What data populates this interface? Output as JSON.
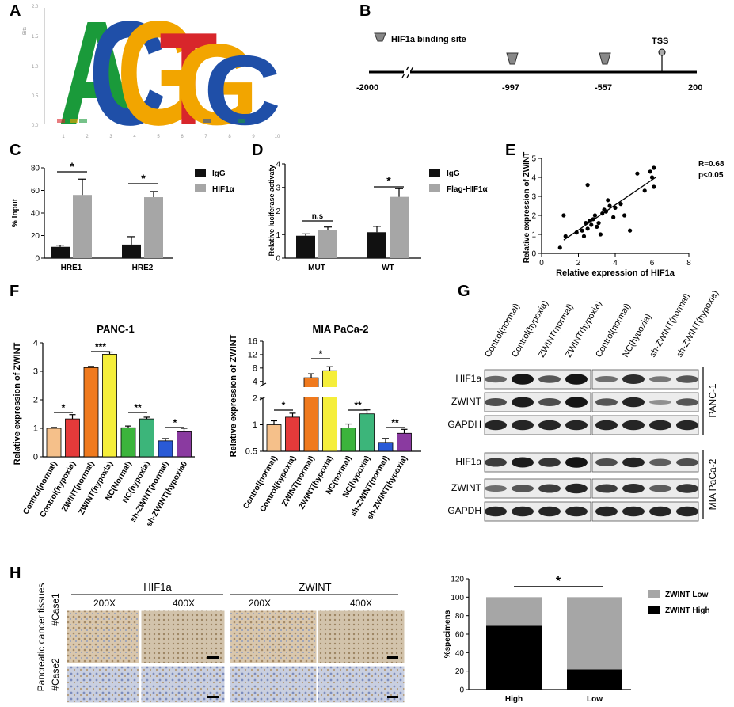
{
  "panels": {
    "a": "A",
    "b": "B",
    "c": "C",
    "d": "D",
    "e": "E",
    "f": "F",
    "g": "G",
    "h": "H"
  },
  "motif": {
    "letters": [
      "A",
      "C",
      "G",
      "T",
      "G",
      "C"
    ],
    "letter_colors": {
      "A": "#1a9a3a",
      "C": "#1f4fa8",
      "G": "#f2a500",
      "T": "#d8262b"
    },
    "y_axis_label": "Bits",
    "y_ticks": [
      "2.0",
      "1.5",
      "1.0",
      "0.5",
      "0.0"
    ],
    "x_ticks": [
      "1",
      "2",
      "3",
      "4",
      "5",
      "6",
      "7",
      "8",
      "9",
      "10"
    ]
  },
  "promoter": {
    "legend": "HIF1a binding site",
    "tss": "TSS",
    "positions": [
      "-2000",
      "-997",
      "-557",
      "200"
    ]
  },
  "chart_data": [
    {
      "id": "C",
      "type": "bar",
      "categories": [
        "HRE1",
        "HRE2"
      ],
      "series": [
        {
          "name": "IgG",
          "values": [
            10,
            12
          ],
          "errors": [
            1.5,
            7
          ]
        },
        {
          "name": "HIF1α",
          "values": [
            56,
            54
          ],
          "errors": [
            14,
            5
          ]
        }
      ],
      "ylabel": "% Input",
      "ylim": [
        0,
        80
      ],
      "yticks": [
        "0",
        "20",
        "40",
        "60",
        "80"
      ],
      "significance": [
        "*",
        "*"
      ]
    },
    {
      "id": "D",
      "type": "bar",
      "categories": [
        "MUT",
        "WT"
      ],
      "series": [
        {
          "name": "IgG",
          "values": [
            0.95,
            1.1
          ],
          "errors": [
            0.08,
            0.25
          ]
        },
        {
          "name": "Flag-HIF1α",
          "values": [
            1.2,
            2.6
          ],
          "errors": [
            0.12,
            0.35
          ]
        }
      ],
      "ylabel": "Relative luciferase activaty",
      "ylim": [
        0,
        4
      ],
      "yticks": [
        "0",
        "1",
        "2",
        "3",
        "4"
      ],
      "significance": [
        "n.s",
        "*"
      ]
    },
    {
      "id": "E",
      "type": "scatter",
      "xlabel": "Relative expression of HIF1a",
      "ylabel": "Relative expression of ZWINT",
      "xlim": [
        0,
        8
      ],
      "ylim": [
        0,
        5
      ],
      "xticks": [
        "0",
        "2",
        "4",
        "6",
        "8"
      ],
      "yticks": [
        "0",
        "1",
        "2",
        "3",
        "4",
        "5"
      ],
      "annotation": [
        "R=0.68",
        "p<0.05"
      ],
      "x": [
        1.0,
        1.3,
        1.2,
        1.9,
        2.2,
        2.3,
        2.4,
        2.5,
        2.6,
        2.7,
        2.8,
        2.9,
        3.0,
        3.1,
        3.2,
        3.3,
        3.4,
        3.5,
        3.6,
        3.7,
        3.9,
        4.0,
        4.3,
        4.5,
        4.8,
        5.2,
        5.6,
        5.9,
        6.0,
        6.1,
        6.1,
        2.5
      ],
      "y": [
        0.3,
        0.9,
        2.0,
        1.1,
        1.2,
        0.9,
        1.6,
        1.3,
        1.7,
        1.5,
        1.8,
        2.0,
        1.4,
        1.6,
        1.0,
        2.1,
        2.3,
        2.2,
        2.8,
        2.5,
        1.9,
        2.4,
        2.6,
        2.0,
        1.2,
        4.2,
        3.3,
        4.3,
        4.0,
        3.5,
        4.5,
        3.6
      ],
      "fit": {
        "x": [
          1.2,
          6.2
        ],
        "y": [
          0.7,
          4.0
        ]
      }
    },
    {
      "id": "F1",
      "type": "bar",
      "title": "PANC-1",
      "ylabel": "Relative expression of ZWINT",
      "ylim": [
        0,
        4
      ],
      "yticks": [
        "0",
        "1",
        "2",
        "3",
        "4"
      ],
      "categories": [
        "Control(normal)",
        "Control(hypoxia)",
        "ZWINT(normal)",
        "ZWINT(hypoxia)",
        "NC(Normal)",
        "NC(hypoxia)",
        "sh-ZWINT(normal)",
        "sh-ZWINT(hypoxia0"
      ],
      "values": [
        1.0,
        1.33,
        3.13,
        3.6,
        1.02,
        1.33,
        0.56,
        0.88
      ],
      "errors": [
        0.03,
        0.15,
        0.04,
        0.08,
        0.06,
        0.06,
        0.08,
        0.12
      ],
      "colors": [
        "#f5c08a",
        "#e53a3a",
        "#f07a1e",
        "#f5ee3a",
        "#3cb43c",
        "#3cb57a",
        "#2a5ad6",
        "#8a3aa0"
      ],
      "significance": [
        "*",
        "***",
        "**",
        "*"
      ]
    },
    {
      "id": "F2",
      "type": "bar",
      "title": "MIA PaCa-2",
      "ylabel": "Relative expression of ZWINT",
      "yticks": [
        "16",
        "12",
        "8",
        "4",
        "2",
        "1",
        "0.5"
      ],
      "categories": [
        "Control(normal)",
        "Control(hypoxia)",
        "ZWINT(normal)",
        "ZWINT(hypoxia)",
        "NC(normal)",
        "NC(hypoxia)",
        "sh-ZWINT(normal)",
        "sh-ZWINT(hypoxia)"
      ],
      "values": [
        1.0,
        1.22,
        5.1,
        7.2,
        0.92,
        1.33,
        0.63,
        0.8
      ],
      "colors": [
        "#f5c08a",
        "#e53a3a",
        "#f07a1e",
        "#f5ee3a",
        "#3cb43c",
        "#3cb57a",
        "#2a5ad6",
        "#8a3aa0"
      ],
      "significance": [
        "*",
        "*",
        "**",
        "**"
      ]
    },
    {
      "id": "H",
      "type": "bar",
      "stacked": true,
      "categories": [
        "High",
        "Low"
      ],
      "series": [
        {
          "name": "ZWINT Low",
          "values": [
            31,
            78
          ]
        },
        {
          "name": "ZWINT High",
          "values": [
            69,
            22
          ]
        }
      ],
      "ylabel": "%specimens",
      "ylim": [
        0,
        120
      ],
      "yticks": [
        "0",
        "20",
        "40",
        "60",
        "80",
        "100",
        "120"
      ],
      "significance": [
        "*"
      ]
    }
  ],
  "western": {
    "lanes": [
      "Control(normal)",
      "Control(hypoxia)",
      "ZWINT(normal)",
      "ZWINT(hypoxia)",
      "Control(normal)",
      "NC(hypoxia)",
      "sh-ZWINT(normal)",
      "sh-ZWINT(hypoxia)"
    ],
    "rows": [
      "HIF1a",
      "ZWINT",
      "GAPDH",
      "HIF1a",
      "ZWINT",
      "GAPDH"
    ],
    "groups": [
      "PANC-1",
      "MIA PaCa-2"
    ]
  },
  "ihc": {
    "col_labels": [
      "HIF1a",
      "ZWINT"
    ],
    "mag": [
      "200X",
      "400X",
      "200X",
      "400X"
    ],
    "side_label": "Pancreatic cancer tissues",
    "cases": [
      "#Case1",
      "#Case2"
    ]
  }
}
